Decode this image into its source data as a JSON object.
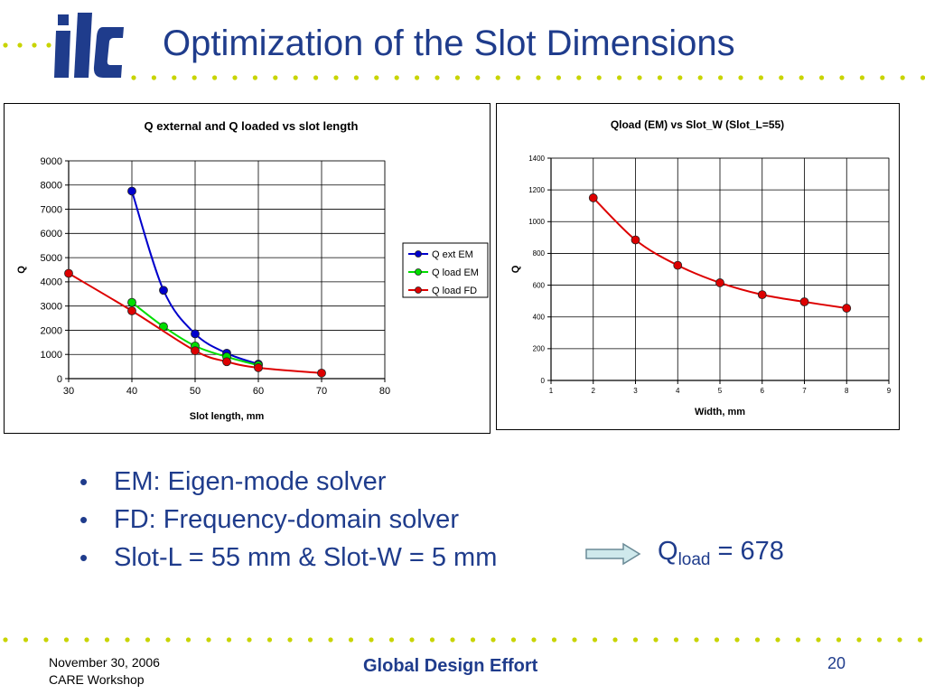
{
  "slide": {
    "logo_text": "ilc",
    "title": "Optimization of the Slot Dimensions",
    "bullets": [
      "EM: Eigen-mode solver",
      "FD: Frequency-domain solver",
      "Slot-L = 55 mm & Slot-W = 5 mm"
    ],
    "result_symbol": "Q",
    "result_subscript": "load",
    "result_value": " = 678",
    "footer": {
      "date": "November 30, 2006",
      "event": "CARE Workshop",
      "center": "Global Design Effort",
      "page": "20"
    },
    "colors": {
      "title": "#1f3c8c",
      "dots": "#c8d400",
      "logo": "#1f3c8c"
    }
  },
  "chart_data": [
    {
      "type": "line",
      "title": "Q external and Q loaded vs slot length",
      "xlabel": "Slot length, mm",
      "ylabel": "Q",
      "xlim": [
        30,
        80
      ],
      "ylim": [
        0,
        9000
      ],
      "xticks": [
        30,
        40,
        50,
        60,
        70,
        80
      ],
      "yticks": [
        0,
        1000,
        2000,
        3000,
        4000,
        5000,
        6000,
        7000,
        8000,
        9000
      ],
      "grid": true,
      "legend": "right",
      "series": [
        {
          "name": "Q ext EM",
          "color": "#0000cc",
          "x": [
            40,
            45,
            50,
            55,
            60
          ],
          "y": [
            7750,
            3650,
            1850,
            1050,
            600
          ]
        },
        {
          "name": "Q load EM",
          "color": "#00dd00",
          "x": [
            40,
            45,
            50,
            55,
            60
          ],
          "y": [
            3150,
            2150,
            1350,
            900,
            550
          ]
        },
        {
          "name": "Q load FD",
          "color": "#dd0000",
          "x": [
            30,
            40,
            50,
            55,
            60,
            70
          ],
          "y": [
            4350,
            2800,
            1150,
            700,
            450,
            230
          ]
        }
      ]
    },
    {
      "type": "line",
      "title": "Qload (EM) vs Slot_W (Slot_L=55)",
      "xlabel": "Width, mm",
      "ylabel": "Q",
      "xlim": [
        1,
        9
      ],
      "ylim": [
        0,
        1400
      ],
      "xticks": [
        1,
        2,
        3,
        4,
        5,
        6,
        7,
        8,
        9
      ],
      "yticks": [
        0,
        200,
        400,
        600,
        800,
        1000,
        1200,
        1400
      ],
      "grid": true,
      "legend": "none",
      "series": [
        {
          "color": "#dd0000",
          "x": [
            2,
            3,
            4,
            5,
            6,
            7,
            8
          ],
          "y": [
            1150,
            885,
            725,
            615,
            540,
            495,
            455
          ]
        }
      ]
    }
  ]
}
